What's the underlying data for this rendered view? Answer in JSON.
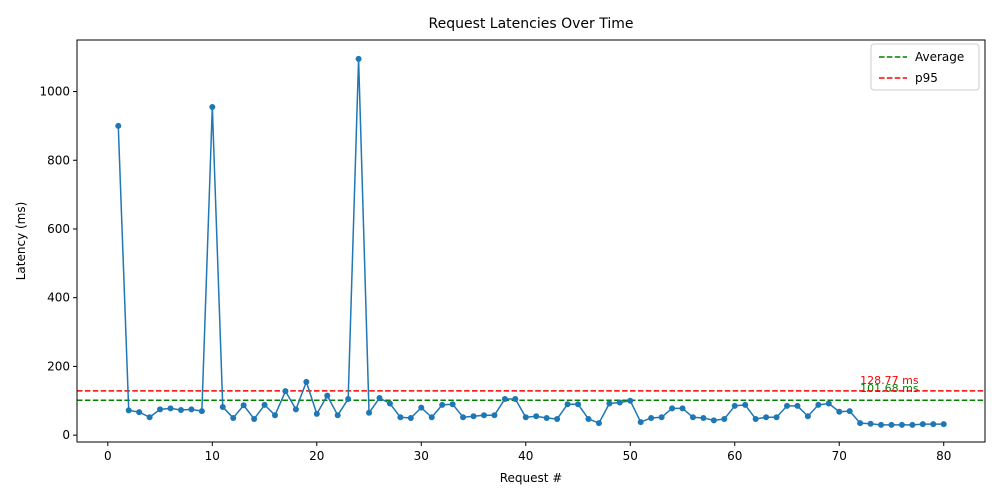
{
  "chart_data": {
    "type": "line",
    "title": "Request Latencies Over Time",
    "xlabel": "Request #",
    "ylabel": "Latency (ms)",
    "xlim": [
      -2.95,
      83.95
    ],
    "ylim": [
      -20,
      1150
    ],
    "xticks": [
      0,
      10,
      20,
      30,
      40,
      50,
      60,
      70,
      80
    ],
    "yticks": [
      0,
      200,
      400,
      600,
      800,
      1000
    ],
    "grid": false,
    "legend_position": "top-right",
    "series": [
      {
        "color": "#1f77b4",
        "x": [
          1,
          2,
          3,
          4,
          5,
          6,
          7,
          8,
          9,
          10,
          11,
          12,
          13,
          14,
          15,
          16,
          17,
          18,
          19,
          20,
          21,
          22,
          23,
          24,
          25,
          26,
          27,
          28,
          29,
          30,
          31,
          32,
          33,
          34,
          35,
          36,
          37,
          38,
          39,
          40,
          41,
          42,
          43,
          44,
          45,
          46,
          47,
          48,
          49,
          50,
          51,
          52,
          53,
          54,
          55,
          56,
          57,
          58,
          59,
          60,
          61,
          62,
          63,
          64,
          65,
          66,
          67,
          68,
          69,
          70,
          71,
          72,
          73,
          74,
          75,
          76,
          77,
          78,
          79,
          80
        ],
        "y": [
          900,
          72,
          67,
          52,
          75,
          78,
          73,
          75,
          70,
          955,
          82,
          50,
          87,
          47,
          88,
          58,
          128,
          75,
          155,
          62,
          115,
          58,
          105,
          1095,
          65,
          108,
          92,
          52,
          50,
          80,
          52,
          88,
          90,
          52,
          55,
          58,
          58,
          105,
          105,
          52,
          55,
          50,
          47,
          90,
          90,
          47,
          35,
          92,
          95,
          100,
          38,
          50,
          52,
          78,
          78,
          52,
          50,
          43,
          47,
          85,
          88,
          47,
          52,
          52,
          85,
          85,
          55,
          88,
          92,
          68,
          70,
          35,
          33,
          30,
          30,
          30,
          30,
          32,
          32,
          32
        ]
      }
    ],
    "reference_lines": [
      {
        "name": "Average",
        "value": 101.68,
        "color": "#008000",
        "label": "101.68 ms"
      },
      {
        "name": "p95",
        "value": 128.77,
        "color": "#ff0000",
        "label": "128.77 ms"
      }
    ]
  }
}
